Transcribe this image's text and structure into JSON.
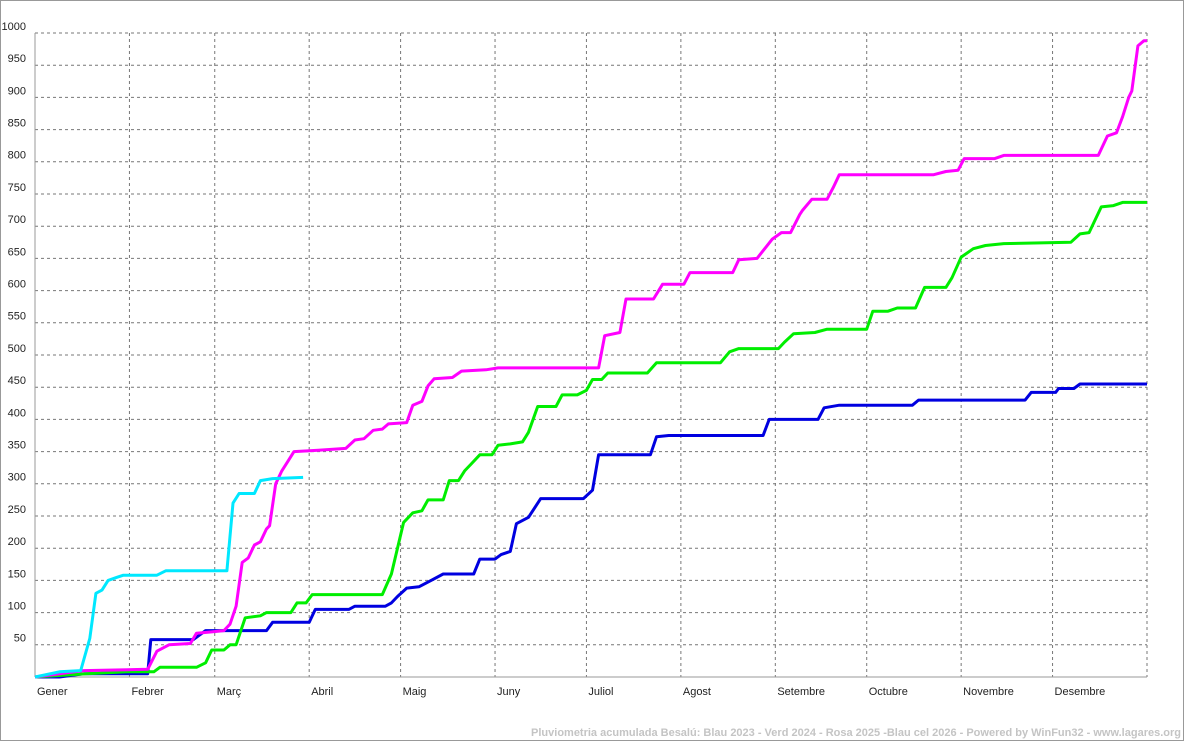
{
  "chart_data": {
    "type": "line",
    "footer": "Pluviometria acumulada Besalú: Blau 2023 - Verd 2024 - Rosa 2025 -Blau cel 2026 - Powered by WinFun32 - www.lagares.org",
    "xlim": [
      0,
      365
    ],
    "xticks": [
      {
        "value": 0,
        "label": "Gener"
      },
      {
        "value": 31,
        "label": "Febrer"
      },
      {
        "value": 59,
        "label": "Març"
      },
      {
        "value": 90,
        "label": "Abril"
      },
      {
        "value": 120,
        "label": "Maig"
      },
      {
        "value": 151,
        "label": "Juny"
      },
      {
        "value": 181,
        "label": "Juliol"
      },
      {
        "value": 212,
        "label": "Agost"
      },
      {
        "value": 243,
        "label": "Setembre"
      },
      {
        "value": 273,
        "label": "Octubre"
      },
      {
        "value": 304,
        "label": "Novembre"
      },
      {
        "value": 334,
        "label": "Desembre"
      }
    ],
    "ylim": [
      0,
      1000
    ],
    "yticks": [
      50,
      100,
      150,
      200,
      250,
      300,
      350,
      400,
      450,
      500,
      550,
      600,
      650,
      700,
      750,
      800,
      850,
      900,
      950,
      1000
    ],
    "grid": true,
    "series": [
      {
        "color": "#0000e0",
        "x": [
          0,
          8,
          16,
          37,
          38,
          52,
          54,
          56,
          76,
          78,
          90,
          92,
          103,
          105,
          115,
          117,
          119,
          122,
          126,
          130,
          134,
          144,
          146,
          151,
          153,
          156,
          158,
          162,
          166,
          180,
          183,
          185,
          202,
          204,
          208,
          239,
          241,
          257,
          259,
          264,
          288,
          290,
          325,
          327,
          335,
          336,
          341,
          343,
          365
        ],
        "values": [
          0,
          0,
          5,
          5,
          58,
          58,
          65,
          72,
          72,
          85,
          85,
          105,
          105,
          110,
          110,
          115,
          125,
          138,
          140,
          150,
          160,
          160,
          183,
          183,
          190,
          195,
          238,
          248,
          277,
          277,
          290,
          345,
          345,
          373,
          375,
          375,
          400,
          400,
          418,
          422,
          422,
          430,
          430,
          442,
          442,
          448,
          448,
          455,
          455
        ]
      },
      {
        "color": "#00ee00",
        "x": [
          0,
          17,
          30,
          39,
          41,
          53,
          56,
          58,
          62,
          64,
          66,
          69,
          74,
          76,
          84,
          86,
          89,
          91,
          114,
          117,
          121,
          124,
          127,
          129,
          134,
          136,
          139,
          141,
          143,
          146,
          150,
          152,
          156,
          160,
          162,
          165,
          171,
          173,
          178,
          181,
          183,
          186,
          188,
          201,
          204,
          225,
          228,
          231,
          244,
          246,
          249,
          256,
          260,
          273,
          275,
          280,
          283,
          289,
          292,
          299,
          301,
          304,
          308,
          312,
          318,
          340,
          343,
          346,
          350,
          354,
          357,
          365
        ],
        "values": [
          0,
          5,
          8,
          8,
          15,
          15,
          22,
          42,
          42,
          50,
          50,
          92,
          95,
          100,
          100,
          115,
          115,
          128,
          128,
          160,
          240,
          255,
          258,
          275,
          275,
          305,
          305,
          320,
          330,
          345,
          345,
          360,
          362,
          365,
          380,
          420,
          420,
          438,
          438,
          445,
          462,
          462,
          472,
          472,
          488,
          488,
          505,
          510,
          510,
          520,
          533,
          535,
          540,
          540,
          568,
          568,
          573,
          573,
          605,
          605,
          620,
          652,
          665,
          670,
          673,
          675,
          688,
          690,
          730,
          732,
          737,
          737
        ]
      },
      {
        "color": "#ff00ff",
        "x": [
          0,
          16,
          37,
          40,
          44,
          51,
          53,
          58,
          62,
          64,
          66,
          68,
          70,
          72,
          74,
          76,
          77,
          79,
          81,
          83,
          85,
          93,
          102,
          105,
          108,
          111,
          114,
          116,
          122,
          124,
          127,
          129,
          131,
          137,
          140,
          148,
          152,
          185,
          187,
          192,
          194,
          203,
          206,
          213,
          215,
          229,
          231,
          237,
          240,
          242,
          245,
          248,
          251,
          252,
          255,
          260,
          262,
          264,
          295,
          299,
          303,
          305,
          315,
          318,
          349,
          352,
          355,
          357,
          359,
          360,
          362,
          364,
          365
        ],
        "values": [
          0,
          10,
          12,
          40,
          50,
          52,
          68,
          70,
          72,
          82,
          110,
          178,
          185,
          205,
          210,
          230,
          235,
          300,
          320,
          335,
          350,
          352,
          355,
          368,
          370,
          383,
          385,
          393,
          395,
          422,
          428,
          452,
          463,
          465,
          475,
          477,
          480,
          480,
          530,
          535,
          587,
          587,
          610,
          610,
          628,
          628,
          648,
          650,
          668,
          680,
          690,
          690,
          718,
          725,
          742,
          742,
          760,
          780,
          780,
          785,
          787,
          805,
          805,
          810,
          810,
          840,
          845,
          870,
          900,
          910,
          980,
          988,
          988
        ]
      },
      {
        "color": "#00e8ff",
        "x": [
          0,
          8,
          15,
          18,
          20,
          22,
          24,
          27,
          29,
          40,
          43,
          63,
          65,
          67,
          72,
          74,
          78,
          88
        ],
        "values": [
          0,
          8,
          10,
          60,
          130,
          135,
          150,
          155,
          158,
          158,
          165,
          165,
          270,
          285,
          285,
          305,
          308,
          310
        ]
      }
    ]
  }
}
